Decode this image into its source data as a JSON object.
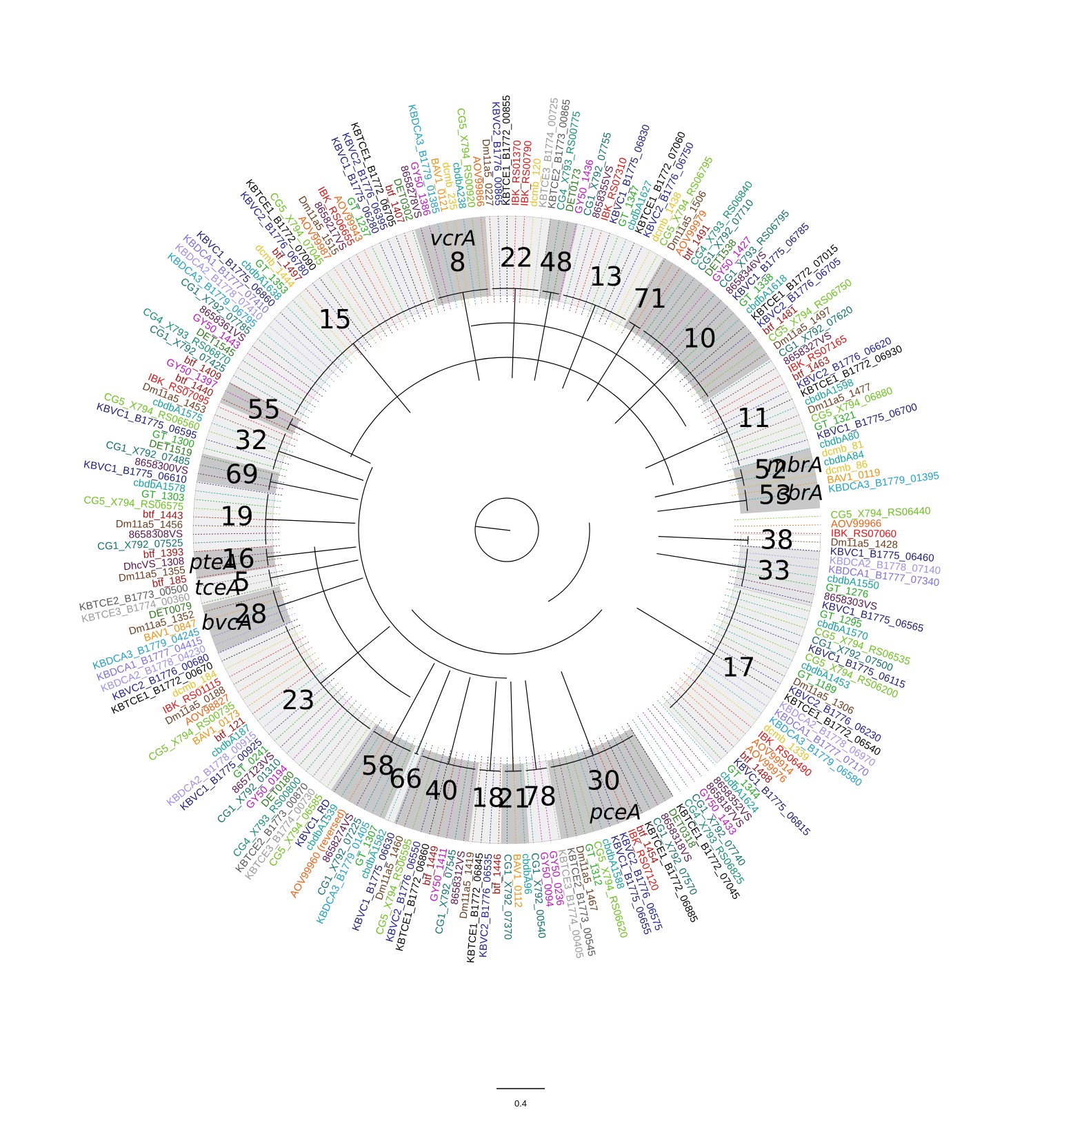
{
  "scale_bar": {
    "label": "0.4"
  },
  "colors": {
    "KBVC1": "#1a1a7a",
    "KBVC2": "#1a1a9a",
    "KBTCE1": "#000000",
    "KBTCE2": "#555555",
    "KBTCE3": "#999999",
    "KBDCA1": "#7b6fe0",
    "KBDCA2": "#9a8fee",
    "KBDCA3": "#1ea0c8",
    "CG1": "#0f6f6f",
    "CG4": "#0f8f6f",
    "CG5": "#6ac21a",
    "GT": "#22aa22",
    "Dm11a5": "#6b3a1a",
    "btf": "#aa1010",
    "IBK": "#e01010",
    "AOV": "#f06010",
    "BAV1": "#f09010",
    "dcmb": "#e8c020",
    "GY50": "#c010c0",
    "DET": "#2a7a1a",
    "VS": "#5a1050",
    "cbdbA": "#12a0a0",
    "other": "#333333"
  },
  "clades": [
    {
      "label": "8",
      "gene": "vcrA",
      "a0": 253,
      "a1": 266,
      "shade": "#c8c8c8"
    },
    {
      "label": "22",
      "gene": "",
      "a0": 266,
      "a1": 278,
      "shade": "#efefef"
    },
    {
      "label": "48",
      "gene": "",
      "a0": 278,
      "a1": 283,
      "shade": "#c8c8c8"
    },
    {
      "label": "13",
      "gene": "",
      "a0": 283,
      "a1": 300,
      "shade": "#efefef"
    },
    {
      "label": "71",
      "gene": "",
      "a0": 300,
      "a1": 304,
      "shade": "#c8c8c8"
    },
    {
      "label": "10",
      "gene": "",
      "a0": 304,
      "a1": 327,
      "shade": "#c8c8c8"
    },
    {
      "label": "11",
      "gene": "",
      "a0": 327,
      "a1": 345,
      "shade": "#efefef"
    },
    {
      "label": "52",
      "gene": "mbrA",
      "a0": 345,
      "a1": 350,
      "shade": "#c8c8c8"
    },
    {
      "label": "53",
      "gene": "cbrA",
      "a0": 350,
      "a1": 356,
      "shade": "#c8c8c8"
    },
    {
      "label": "38",
      "gene": "",
      "a0": 1,
      "a1": 4,
      "shade": "#ffffff"
    },
    {
      "label": "33",
      "gene": "",
      "a0": 4,
      "a1": 14,
      "shade": "#e5e5e5"
    },
    {
      "label": "17",
      "gene": "",
      "a0": 14,
      "a1": 48,
      "shade": "#efefef"
    },
    {
      "label": "30",
      "gene": "pceA",
      "a0": 58,
      "a1": 80,
      "shade": "#c8c8c8"
    },
    {
      "label": "78",
      "gene": "",
      "a0": 80,
      "a1": 86,
      "shade": "#efefef"
    },
    {
      "label": "21",
      "gene": "",
      "a0": 86,
      "a1": 91,
      "shade": "#c8c8c8"
    },
    {
      "label": "18",
      "gene": "",
      "a0": 91,
      "a1": 97,
      "shade": "#efefef"
    },
    {
      "label": "40",
      "gene": "",
      "a0": 97,
      "a1": 111,
      "shade": "#c8c8c8"
    },
    {
      "label": "66",
      "gene": "",
      "a0": 111,
      "a1": 113,
      "shade": "#efefef"
    },
    {
      "label": "58",
      "gene": "",
      "a0": 113,
      "a1": 124,
      "shade": "#c8c8c8"
    },
    {
      "label": "23",
      "gene": "",
      "a0": 124,
      "a1": 157,
      "shade": "#efefef"
    },
    {
      "label": "28",
      "gene": "bvcA",
      "a0": 157,
      "a1": 166,
      "shade": "#c8c8c8"
    },
    {
      "label": "5",
      "gene": "tceA",
      "a0": 166,
      "a1": 171,
      "shade": "#efefef"
    },
    {
      "label": "16",
      "gene": "pteA",
      "a0": 171,
      "a1": 176,
      "shade": "#c8c8c8"
    },
    {
      "label": "19",
      "gene": "",
      "a0": 176,
      "a1": 189,
      "shade": "#efefef"
    },
    {
      "label": "69",
      "gene": "",
      "a0": 189,
      "a1": 194,
      "shade": "#c8c8c8"
    },
    {
      "label": "32",
      "gene": "",
      "a0": 194,
      "a1": 204,
      "shade": "#efefef"
    },
    {
      "label": "55",
      "gene": "",
      "a0": 204,
      "a1": 208,
      "shade": "#c8c8c8"
    },
    {
      "label": "15",
      "gene": "",
      "a0": 208,
      "a1": 253,
      "shade": "#efefef"
    }
  ],
  "leaves": [
    "CG5_X794_RS06440",
    "AOV99966",
    "IBK_RS07060",
    "Dm11a5_1428",
    "KBVC1_B1775_06460",
    "KBDCA2_B1778_07140",
    "KBDCA1_B1777_07340",
    "cbdbA1550",
    "GT_1276",
    "8658303VS",
    "KBVC1_B1775_06565",
    "GT_1295",
    "cbdbA1570",
    "CG5_X794_RS06535",
    "CG1_X792_07500",
    "KBVC1_B1775_06115",
    "CG5_X794_RS06200",
    "cbdbA1453",
    "GT_1189",
    "Dm11a5_1306",
    "KBVC2_B1776_06230",
    "KBTCE1_B1772_06540",
    "KBDCA2_B1778_06970",
    "KBDCA1_B1777_07170",
    "KBDCA3_B1779_06580",
    "dcmb_1339",
    "IBK_RS06490",
    "AOV99914",
    "AOV99976",
    "btf_1488",
    "KBVC1_B1775_06815",
    "GT_1344",
    "cbdbA1624",
    "8658352VS",
    "8658187VS",
    "GY50_1433",
    "CG1_X792_07740",
    "CG4_X793_RS06825",
    "KBTCE1_B1772_07045",
    "DET0318",
    "8658318VS",
    "CG1_X792_07570",
    "KBTCE1_B1772_06885",
    "btf_1454",
    "IBK_RS07120",
    "KBVC2_B1776_06575",
    "KBVC1_B1775_06655",
    "cbdbA1588",
    "CG5_X794_RS06620",
    "GT_1312",
    "Dm11a5_1467",
    "KBTCE2_B1773_00545",
    "KBTCE3_B1774_00405",
    "GY50_0236",
    "GY50_0094",
    "CG1_X792_00540",
    "cbdbA96",
    "BAV1_0112",
    "CG1_X792_07370",
    "btf_1446",
    "KBVC2_B1776_06535",
    "KBTCE1_B1772_06845",
    "Dm11a5_1419",
    "8658312VS",
    "CG1_X792_07545",
    "GY50_1411",
    "btf_1449",
    "KBTCE1_B1772_06860",
    "KBVC2_B1776_06550",
    "CG5_X794_RS06595",
    "Dm11a5_1460",
    "KBVC1_B1775_06630",
    "cbdbA1582",
    "GT_1307",
    "KBDCA3_B1779_01405",
    "CG1_X792_07225",
    "8658274VS",
    "AOV99960 (reversed)",
    "cbdbA1539",
    "KBVC1_RD",
    "CG5_X794_06585",
    "KBTCE3_B1774_00730",
    "KBTCE2_B1773_00870",
    "CG4_X793_RS00800",
    "DET0180",
    "GY50_0194",
    "CG1_X792_01310",
    "8657123VS",
    "GT_0241",
    "KBVC1_B1775_00925",
    "KBDCA2_B1778_00915",
    "cbdbA187",
    "btf_121",
    "BAV1_0173",
    "CG5_X794_RS00735",
    "AOV98827",
    "Dm11a5_0188",
    "IBK_RS01115",
    "dcmb_184",
    "KBTCE1_B1772_00670",
    "KBVC2_B1776_00680",
    "KBDCA2_B1778_04230",
    "KBDCA1_B1777_04415",
    "KBDCA3_B1779_04245",
    "BAV1_0847",
    "Dm11a5_1352",
    "DET0079",
    "KBTCE3_B1774_00360",
    "KBTCE2_B1773_00500",
    "btf_185",
    "Dm11a5_1355",
    "DhcVS_1308",
    "btf_1393",
    "CG1_X792_07525",
    "8658308VS",
    "Dm11a5_1456",
    "btf_1443",
    "CG5_X794_RS06575",
    "GT_1303",
    "cbdbA1578",
    "KBVC1_B1775_06610",
    "8658300VS",
    "CG1_X792_07485",
    "DET1519",
    "GT_1300",
    "KBVC1_B1775_06595",
    "CG5_X794_RS06560",
    "cbdbA1575",
    "Dm11a5_1453",
    "IBK_RS07095",
    "btf_1440",
    "GY50_1397",
    "btf_1409",
    "CG1_X792_07425",
    "CG4_X793_RS06870",
    "DET1545",
    "GY50_1443",
    "8658361VS",
    "CG1_X792_07785",
    "KBDCA3_B1779_06795",
    "KBDCA2_B1778_07410",
    "KBDCA1_B1777_07410",
    "KBVC1_B1775_06860",
    "cbdbA1638",
    "GT_1353",
    "dcmb_1444",
    "btf_1497",
    "KBVC2_B1776_06780",
    "KBTCE1_B1772_07090",
    "CG5_X794_07045",
    "AOV99987",
    "Dm11a5_1515",
    "8658217VS",
    "IBK_RS06655",
    "AOV99943",
    "GT_1237",
    "KBVC1_B1775_06280",
    "KBVC2_B1776_06395",
    "KBTCE1_B1772_06705",
    "btf_1407",
    "DET0302",
    "8658278VS",
    "GY50_1386",
    "KBDCA3_B1779_01385",
    "BAV1_0121",
    "dcmb_235",
    "cbdbA238",
    "CG5_X794_RS00920",
    "AOV99866",
    "Dm11a5_0227",
    "KBVC2_B1776_00865",
    "KBTCE1_B1772_00855",
    "IBK_RS01370",
    "IBK_RS00790",
    "dcmb_120",
    "KBTCE3_B1774_00725",
    "KBTCE2_B1773_00865",
    "CG4_X793_RS00775",
    "DET0173",
    "GY50_1436",
    "CG1_X792_07755",
    "8658355VS",
    "IBK_RS07310",
    "KBVC1_B1775_06830",
    "GT_1347",
    "cbdbA1627",
    "KBTCE1_B1772_07060",
    "KBVC2_B1776_06750",
    "dcmb_1438",
    "CG5_X794_RS06795",
    "Dm11a5_1506",
    "AOV99979",
    "btf_1491",
    "CG4_X793_RS06840",
    "CG1_X792_07710",
    "DET1538",
    "GY50_1427",
    "CG1_X793_RS06795",
    "8658346VS",
    "KBVC1_B1775_06785",
    "GT_1338",
    "cbdbA1618",
    "KBTCE1_B1772_07015",
    "KBVC2_B1776_06705",
    "btf_1481",
    "CG5_X794_RS06750",
    "Dm11a5_1497",
    "CG1_X792_07620",
    "8658327VS",
    "IBK_RS07165",
    "btf_1463",
    "KBVC2_B1776_06620",
    "KBTCE1_B1772_06930",
    "cbdbA1598",
    "Dm11a5_1477",
    "CG5_X794_06880",
    "GT_1321",
    "KBVC1_B1775_06700",
    "cbdbA80",
    "dcmb_81",
    "cbdbA84",
    "dcmb_86",
    "BAV1_0119",
    "KBDCA3_B1779_01395"
  ]
}
